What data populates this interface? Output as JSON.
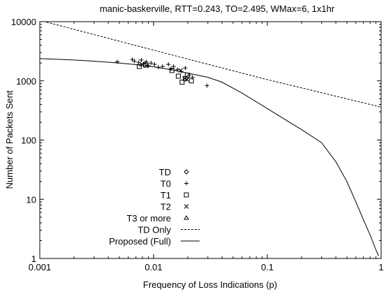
{
  "chart_data": {
    "type": "scatter",
    "title": "manic-baskerville, RTT=0.243, TO=2.495, WMax=6, 1x1hr",
    "xlabel": "Frequency of Loss Indications (p)",
    "ylabel": "Number of Packets Sent",
    "xscale": "log",
    "yscale": "log",
    "xlim": [
      0.001,
      1
    ],
    "ylim": [
      1,
      10000
    ],
    "x_ticks": [
      {
        "value": 0.001,
        "label": "0.001"
      },
      {
        "value": 0.01,
        "label": "0.01"
      },
      {
        "value": 0.1,
        "label": "0.1"
      },
      {
        "value": 1,
        "label": "1"
      }
    ],
    "y_ticks": [
      {
        "value": 1,
        "label": "1"
      },
      {
        "value": 10,
        "label": "10"
      },
      {
        "value": 100,
        "label": "100"
      },
      {
        "value": 1000,
        "label": "1000"
      },
      {
        "value": 10000,
        "label": "10000"
      }
    ],
    "grid": false,
    "legend_position": "lower-left",
    "series": [
      {
        "name": "TD",
        "marker": "diamond",
        "points": []
      },
      {
        "name": "T0",
        "marker": "plus",
        "points": [
          [
            0.0048,
            2100
          ],
          [
            0.0065,
            2300
          ],
          [
            0.0068,
            2150
          ],
          [
            0.0074,
            2050
          ],
          [
            0.0078,
            2250
          ],
          [
            0.0082,
            1950
          ],
          [
            0.0086,
            2100
          ],
          [
            0.009,
            1800
          ],
          [
            0.0095,
            2000
          ],
          [
            0.0102,
            1900
          ],
          [
            0.011,
            1700
          ],
          [
            0.012,
            1750
          ],
          [
            0.0135,
            1900
          ],
          [
            0.0142,
            1600
          ],
          [
            0.015,
            1750
          ],
          [
            0.0162,
            1550
          ],
          [
            0.0175,
            1450
          ],
          [
            0.019,
            1650
          ],
          [
            0.0205,
            1250
          ],
          [
            0.022,
            1150
          ],
          [
            0.0295,
            830
          ]
        ]
      },
      {
        "name": "T1",
        "marker": "square",
        "points": [
          [
            0.0075,
            1750
          ],
          [
            0.0085,
            1850
          ],
          [
            0.0145,
            1500
          ],
          [
            0.0165,
            1200
          ],
          [
            0.0178,
            950
          ],
          [
            0.019,
            1100
          ],
          [
            0.0198,
            1250
          ],
          [
            0.0215,
            1000
          ]
        ]
      },
      {
        "name": "T2",
        "marker": "cross",
        "points": [
          [
            0.0079,
            1900
          ],
          [
            0.0087,
            1820
          ],
          [
            0.0173,
            1500
          ],
          [
            0.0188,
            1100
          ],
          [
            0.0197,
            1050
          ]
        ]
      },
      {
        "name": "T3 or more",
        "marker": "triangle",
        "points": []
      },
      {
        "name": "TD Only",
        "style": "dashed",
        "points": [
          [
            0.001,
            10500
          ],
          [
            0.01,
            3300
          ],
          [
            0.1,
            1050
          ],
          [
            1,
            360
          ]
        ]
      },
      {
        "name": "Proposed (Full)",
        "style": "solid",
        "points": [
          [
            0.001,
            2380
          ],
          [
            0.002,
            2250
          ],
          [
            0.003,
            2150
          ],
          [
            0.005,
            2000
          ],
          [
            0.007,
            1880
          ],
          [
            0.01,
            1730
          ],
          [
            0.015,
            1520
          ],
          [
            0.02,
            1350
          ],
          [
            0.03,
            1150
          ],
          [
            0.04,
            950
          ],
          [
            0.06,
            620
          ],
          [
            0.1,
            340
          ],
          [
            0.15,
            210
          ],
          [
            0.2,
            150
          ],
          [
            0.3,
            90
          ],
          [
            0.4,
            43
          ],
          [
            0.5,
            20
          ],
          [
            0.6,
            9
          ],
          [
            0.7,
            4.5
          ],
          [
            0.8,
            2.5
          ],
          [
            0.9,
            1.4
          ],
          [
            0.95,
            1.1
          ]
        ]
      }
    ]
  }
}
